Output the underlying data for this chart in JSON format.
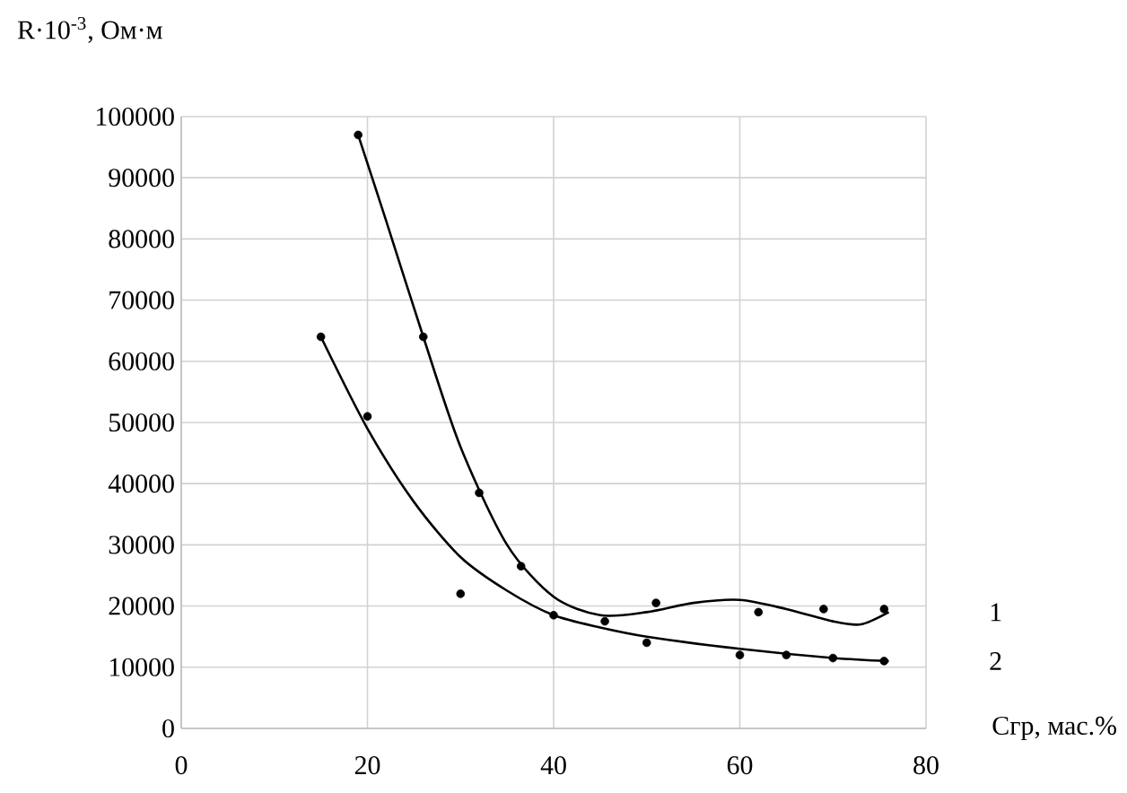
{
  "chart_data": {
    "type": "scatter",
    "xlabel": "Сгр, мас.%",
    "ylabel": "R·10$^{-3}$,  Ом·м",
    "xlim": [
      0,
      80
    ],
    "xticks": [
      0,
      20,
      40,
      60,
      80
    ],
    "ylim": [
      0,
      100000
    ],
    "yticks": [
      0,
      10000,
      20000,
      30000,
      40000,
      50000,
      60000,
      70000,
      80000,
      90000,
      100000
    ],
    "grid": true,
    "series": [
      {
        "marker": "circle",
        "color": "#000000",
        "x": [
          19,
          26,
          32,
          36.5,
          45.5,
          51,
          62,
          69,
          75.5
        ],
        "values": [
          97000,
          64000,
          38500,
          26500,
          17500,
          20500,
          19000,
          19500,
          19500
        ]
      },
      {
        "marker": "circle",
        "color": "#000000",
        "x": [
          15,
          20,
          30,
          40,
          50,
          60,
          65,
          70,
          75.5
        ],
        "values": [
          64000,
          51000,
          22000,
          18500,
          14000,
          12000,
          12000,
          11500,
          11000
        ]
      },
      {
        "type": "line",
        "marker": "none",
        "name": "1",
        "color": "#000000",
        "x": [
          19,
          22,
          26,
          30,
          35,
          40,
          45,
          50,
          55,
          60,
          65,
          70,
          73,
          76
        ],
        "values": [
          97000,
          83000,
          64000,
          46000,
          30000,
          21500,
          18500,
          19000,
          20500,
          21000,
          19500,
          17500,
          17000,
          19000
        ]
      },
      {
        "type": "line",
        "marker": "none",
        "name": "2",
        "color": "#000000",
        "x": [
          15,
          20,
          25,
          30,
          35,
          40,
          45,
          50,
          60,
          70,
          76
        ],
        "values": [
          64000,
          49000,
          37000,
          28000,
          22500,
          18500,
          16500,
          15000,
          13000,
          11500,
          11000
        ]
      }
    ]
  }
}
